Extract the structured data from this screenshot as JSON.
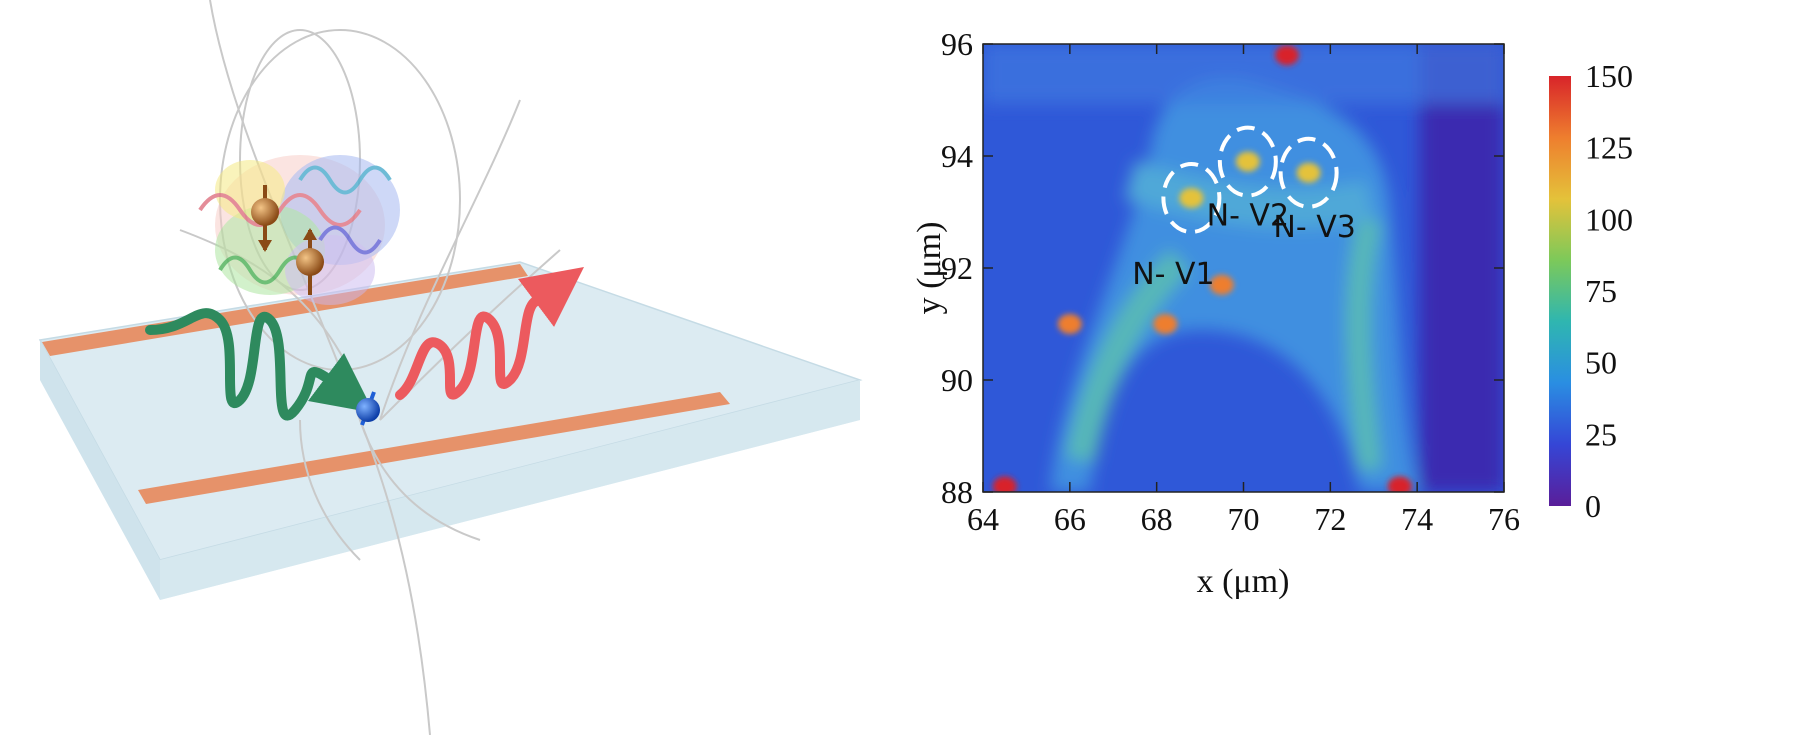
{
  "schematic": {
    "colors": {
      "substrate": "#dcebf2",
      "electrode": "#e6926a",
      "excitation_wave": "#2e8a5e",
      "emission_wave": "#ec5a5e",
      "nv_spin": "#1f5fd6",
      "protein_spin": "#b06a2a"
    },
    "icons": [
      "protein-structure-icon",
      "electron-spin-icon",
      "nv-spin-icon",
      "field-line-icon"
    ]
  },
  "chart_data": {
    "type": "heatmap",
    "title": "",
    "xlabel": "x (μm)",
    "ylabel": "y (μm)",
    "xlim": [
      64,
      76
    ],
    "ylim": [
      88,
      96
    ],
    "x_ticks": [
      "64",
      "66",
      "68",
      "70",
      "72",
      "74",
      "76"
    ],
    "y_ticks": [
      "88",
      "90",
      "92",
      "94",
      "96"
    ],
    "colorbar": {
      "range": [
        0,
        150
      ],
      "ticks": [
        "0",
        "25",
        "50",
        "75",
        "100",
        "125",
        "150"
      ],
      "colormap": [
        "#5a1e9a",
        "#3546d6",
        "#2a8ee2",
        "#2fb6b0",
        "#7cc95a",
        "#e4c23a",
        "#ee7e2e",
        "#d8242a"
      ]
    },
    "annotations": [
      {
        "label": "N- V1",
        "x": 68.8,
        "y": 93.25
      },
      {
        "label": "N- V2",
        "x": 70.1,
        "y": 93.9
      },
      {
        "label": "N- V3",
        "x": 71.5,
        "y": 93.7
      }
    ],
    "features": [
      {
        "x": 68.8,
        "y": 93.25,
        "value": 110
      },
      {
        "x": 70.1,
        "y": 93.9,
        "value": 105
      },
      {
        "x": 71.5,
        "y": 93.7,
        "value": 110
      },
      {
        "x": 71.0,
        "y": 95.8,
        "value": 150
      },
      {
        "x": 64.5,
        "y": 88.1,
        "value": 150
      },
      {
        "x": 73.6,
        "y": 88.1,
        "value": 150
      },
      {
        "x": 69.5,
        "y": 91.7,
        "value": 130
      },
      {
        "x": 66.0,
        "y": 91.0,
        "value": 120
      },
      {
        "x": 68.2,
        "y": 91.0,
        "value": 120
      }
    ]
  }
}
